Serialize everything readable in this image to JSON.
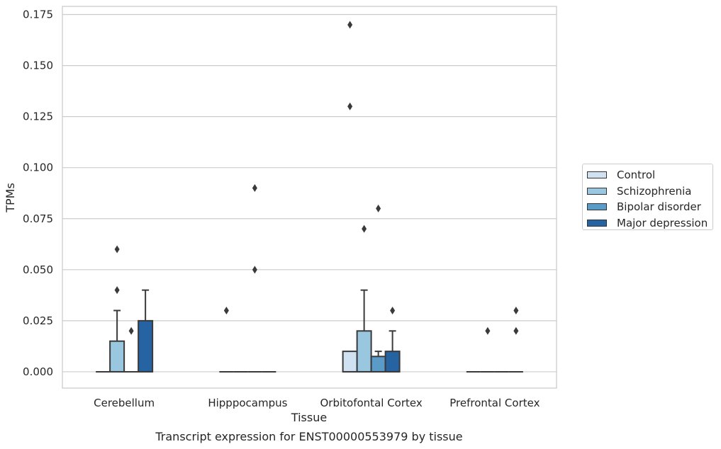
{
  "chart_data": {
    "type": "box",
    "title": "Transcript expression for ENST00000553979 by tissue",
    "xlabel": "Tissue",
    "ylabel": "TPMs",
    "ylim": [
      -0.008,
      0.179
    ],
    "yticks": [
      "0.000",
      "0.025",
      "0.050",
      "0.075",
      "0.100",
      "0.125",
      "0.150",
      "0.175"
    ],
    "categories": [
      "Cerebellum",
      "Hipppocampus",
      "Orbitofontal Cortex",
      "Prefrontal Cortex"
    ],
    "grid": true,
    "legend_position": "right",
    "series": [
      {
        "name": "Control",
        "color": "#d0e1f2",
        "boxes": [
          {
            "q1": 0,
            "median": 0,
            "q3": 0,
            "whisker_high": 0,
            "outliers": []
          },
          {
            "q1": 0,
            "median": 0,
            "q3": 0,
            "whisker_high": 0,
            "outliers": [
              0.03
            ]
          },
          {
            "q1": 0,
            "median": 0,
            "q3": 0.01,
            "whisker_high": 0.01,
            "outliers": [
              0.13,
              0.17
            ]
          },
          {
            "q1": 0,
            "median": 0,
            "q3": 0,
            "whisker_high": 0,
            "outliers": []
          }
        ]
      },
      {
        "name": "Schizophrenia",
        "color": "#9ac7e0",
        "boxes": [
          {
            "q1": 0,
            "median": 0,
            "q3": 0.015,
            "whisker_high": 0.03,
            "outliers": [
              0.04,
              0.06
            ]
          },
          {
            "q1": 0,
            "median": 0,
            "q3": 0,
            "whisker_high": 0,
            "outliers": []
          },
          {
            "q1": 0,
            "median": 0,
            "q3": 0.02,
            "whisker_high": 0.04,
            "outliers": [
              0.07
            ]
          },
          {
            "q1": 0,
            "median": 0,
            "q3": 0,
            "whisker_high": 0,
            "outliers": [
              0.02
            ]
          }
        ]
      },
      {
        "name": "Bipolar disorder",
        "color": "#5a9bc8",
        "boxes": [
          {
            "q1": 0,
            "median": 0,
            "q3": 0,
            "whisker_high": 0,
            "outliers": [
              0.02
            ]
          },
          {
            "q1": 0,
            "median": 0,
            "q3": 0,
            "whisker_high": 0,
            "outliers": [
              0.05,
              0.09
            ]
          },
          {
            "q1": 0,
            "median": 0,
            "q3": 0.0075,
            "whisker_high": 0.01,
            "outliers": [
              0.08
            ]
          },
          {
            "q1": 0,
            "median": 0,
            "q3": 0,
            "whisker_high": 0,
            "outliers": []
          }
        ]
      },
      {
        "name": "Major depression",
        "color": "#2563a3",
        "boxes": [
          {
            "q1": 0,
            "median": 0,
            "q3": 0.025,
            "whisker_high": 0.04,
            "outliers": []
          },
          {
            "q1": 0,
            "median": 0,
            "q3": 0,
            "whisker_high": 0,
            "outliers": []
          },
          {
            "q1": 0,
            "median": 0,
            "q3": 0.01,
            "whisker_high": 0.02,
            "outliers": [
              0.03
            ]
          },
          {
            "q1": 0,
            "median": 0,
            "q3": 0,
            "whisker_high": 0,
            "outliers": [
              0.02,
              0.03
            ]
          }
        ]
      }
    ]
  }
}
